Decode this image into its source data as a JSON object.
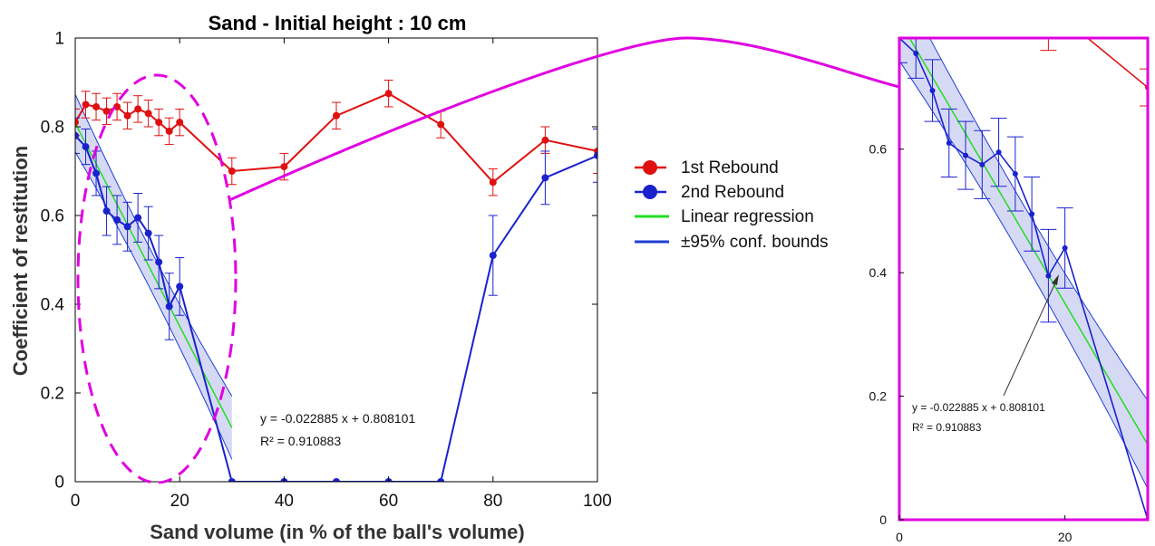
{
  "figure_colors": {
    "first_rebound": "#e01010",
    "second_rebound": "#1a22cc",
    "regression": "#22dd22",
    "conf_bounds": "#1f3fd6",
    "conf_fill": "#c8ccf0",
    "highlight": "#e000e0"
  },
  "legend": {
    "items": [
      {
        "label": "1st Rebound",
        "color": "#e01010",
        "kind": "marker"
      },
      {
        "label": "2nd Rebound",
        "color": "#1a22cc",
        "kind": "marker"
      },
      {
        "label": "Linear regression",
        "color": "#22dd22",
        "kind": "line"
      },
      {
        "label": "±95% conf. bounds",
        "color": "#1f3fd6",
        "kind": "line"
      }
    ]
  },
  "chart_data": [
    {
      "type": "line",
      "title": "Sand - Initial height : 10 cm",
      "xlabel": "Sand volume (in % of the ball's volume)",
      "ylabel": "Coefficient of restitution",
      "xlim": [
        0,
        100
      ],
      "ylim": [
        0,
        1
      ],
      "xticks": [
        "0",
        "20",
        "40",
        "60",
        "80",
        "100"
      ],
      "yticks": [
        "0",
        "0.2",
        "0.4",
        "0.6",
        "0.8",
        "1"
      ],
      "series": [
        {
          "name": "1st Rebound",
          "color": "#e01010",
          "x": [
            0,
            2,
            4,
            6,
            8,
            10,
            12,
            14,
            16,
            18,
            20,
            30,
            40,
            50,
            60,
            70,
            80,
            90,
            100
          ],
          "y": [
            0.81,
            0.85,
            0.845,
            0.835,
            0.845,
            0.825,
            0.84,
            0.83,
            0.81,
            0.79,
            0.81,
            0.7,
            0.71,
            0.825,
            0.875,
            0.805,
            0.675,
            0.77,
            0.745
          ],
          "err": [
            0.03,
            0.03,
            0.03,
            0.03,
            0.03,
            0.03,
            0.03,
            0.03,
            0.03,
            0.03,
            0.03,
            0.03,
            0.03,
            0.03,
            0.03,
            0.03,
            0.03,
            0.03,
            0.05
          ]
        },
        {
          "name": "2nd Rebound",
          "color": "#1a22cc",
          "x": [
            0,
            2,
            4,
            6,
            8,
            10,
            12,
            14,
            16,
            18,
            20,
            30,
            40,
            50,
            60,
            70,
            80,
            90,
            100
          ],
          "y": [
            0.78,
            0.755,
            0.695,
            0.61,
            0.59,
            0.575,
            0.595,
            0.56,
            0.495,
            0.395,
            0.44,
            0.0,
            0.0,
            0.0,
            0.0,
            0.0,
            0.51,
            0.685,
            0.735
          ],
          "err": [
            0.04,
            0.04,
            0.05,
            0.055,
            0.055,
            0.055,
            0.055,
            0.06,
            0.06,
            0.075,
            0.065,
            0,
            0,
            0,
            0,
            0,
            0.09,
            0.06,
            0.06
          ]
        }
      ],
      "regression": {
        "slope": -0.022885,
        "intercept": 0.808101,
        "x_range": [
          0,
          30
        ],
        "conf_band": 0.045,
        "equation_label": "y = -0.022885 x + 0.808101",
        "r2_label": "R² = 0.910883"
      }
    },
    {
      "type": "line",
      "title": "",
      "xlim": [
        0,
        30
      ],
      "ylim": [
        0,
        0.78
      ],
      "xticks": [
        "0",
        "20"
      ],
      "yticks": [
        "0",
        "0.2",
        "0.4",
        "0.6"
      ],
      "regression_labels": {
        "equation_label": "y = -0.022885 x + 0.808101",
        "r2_label": "R² = 0.910883"
      }
    }
  ]
}
